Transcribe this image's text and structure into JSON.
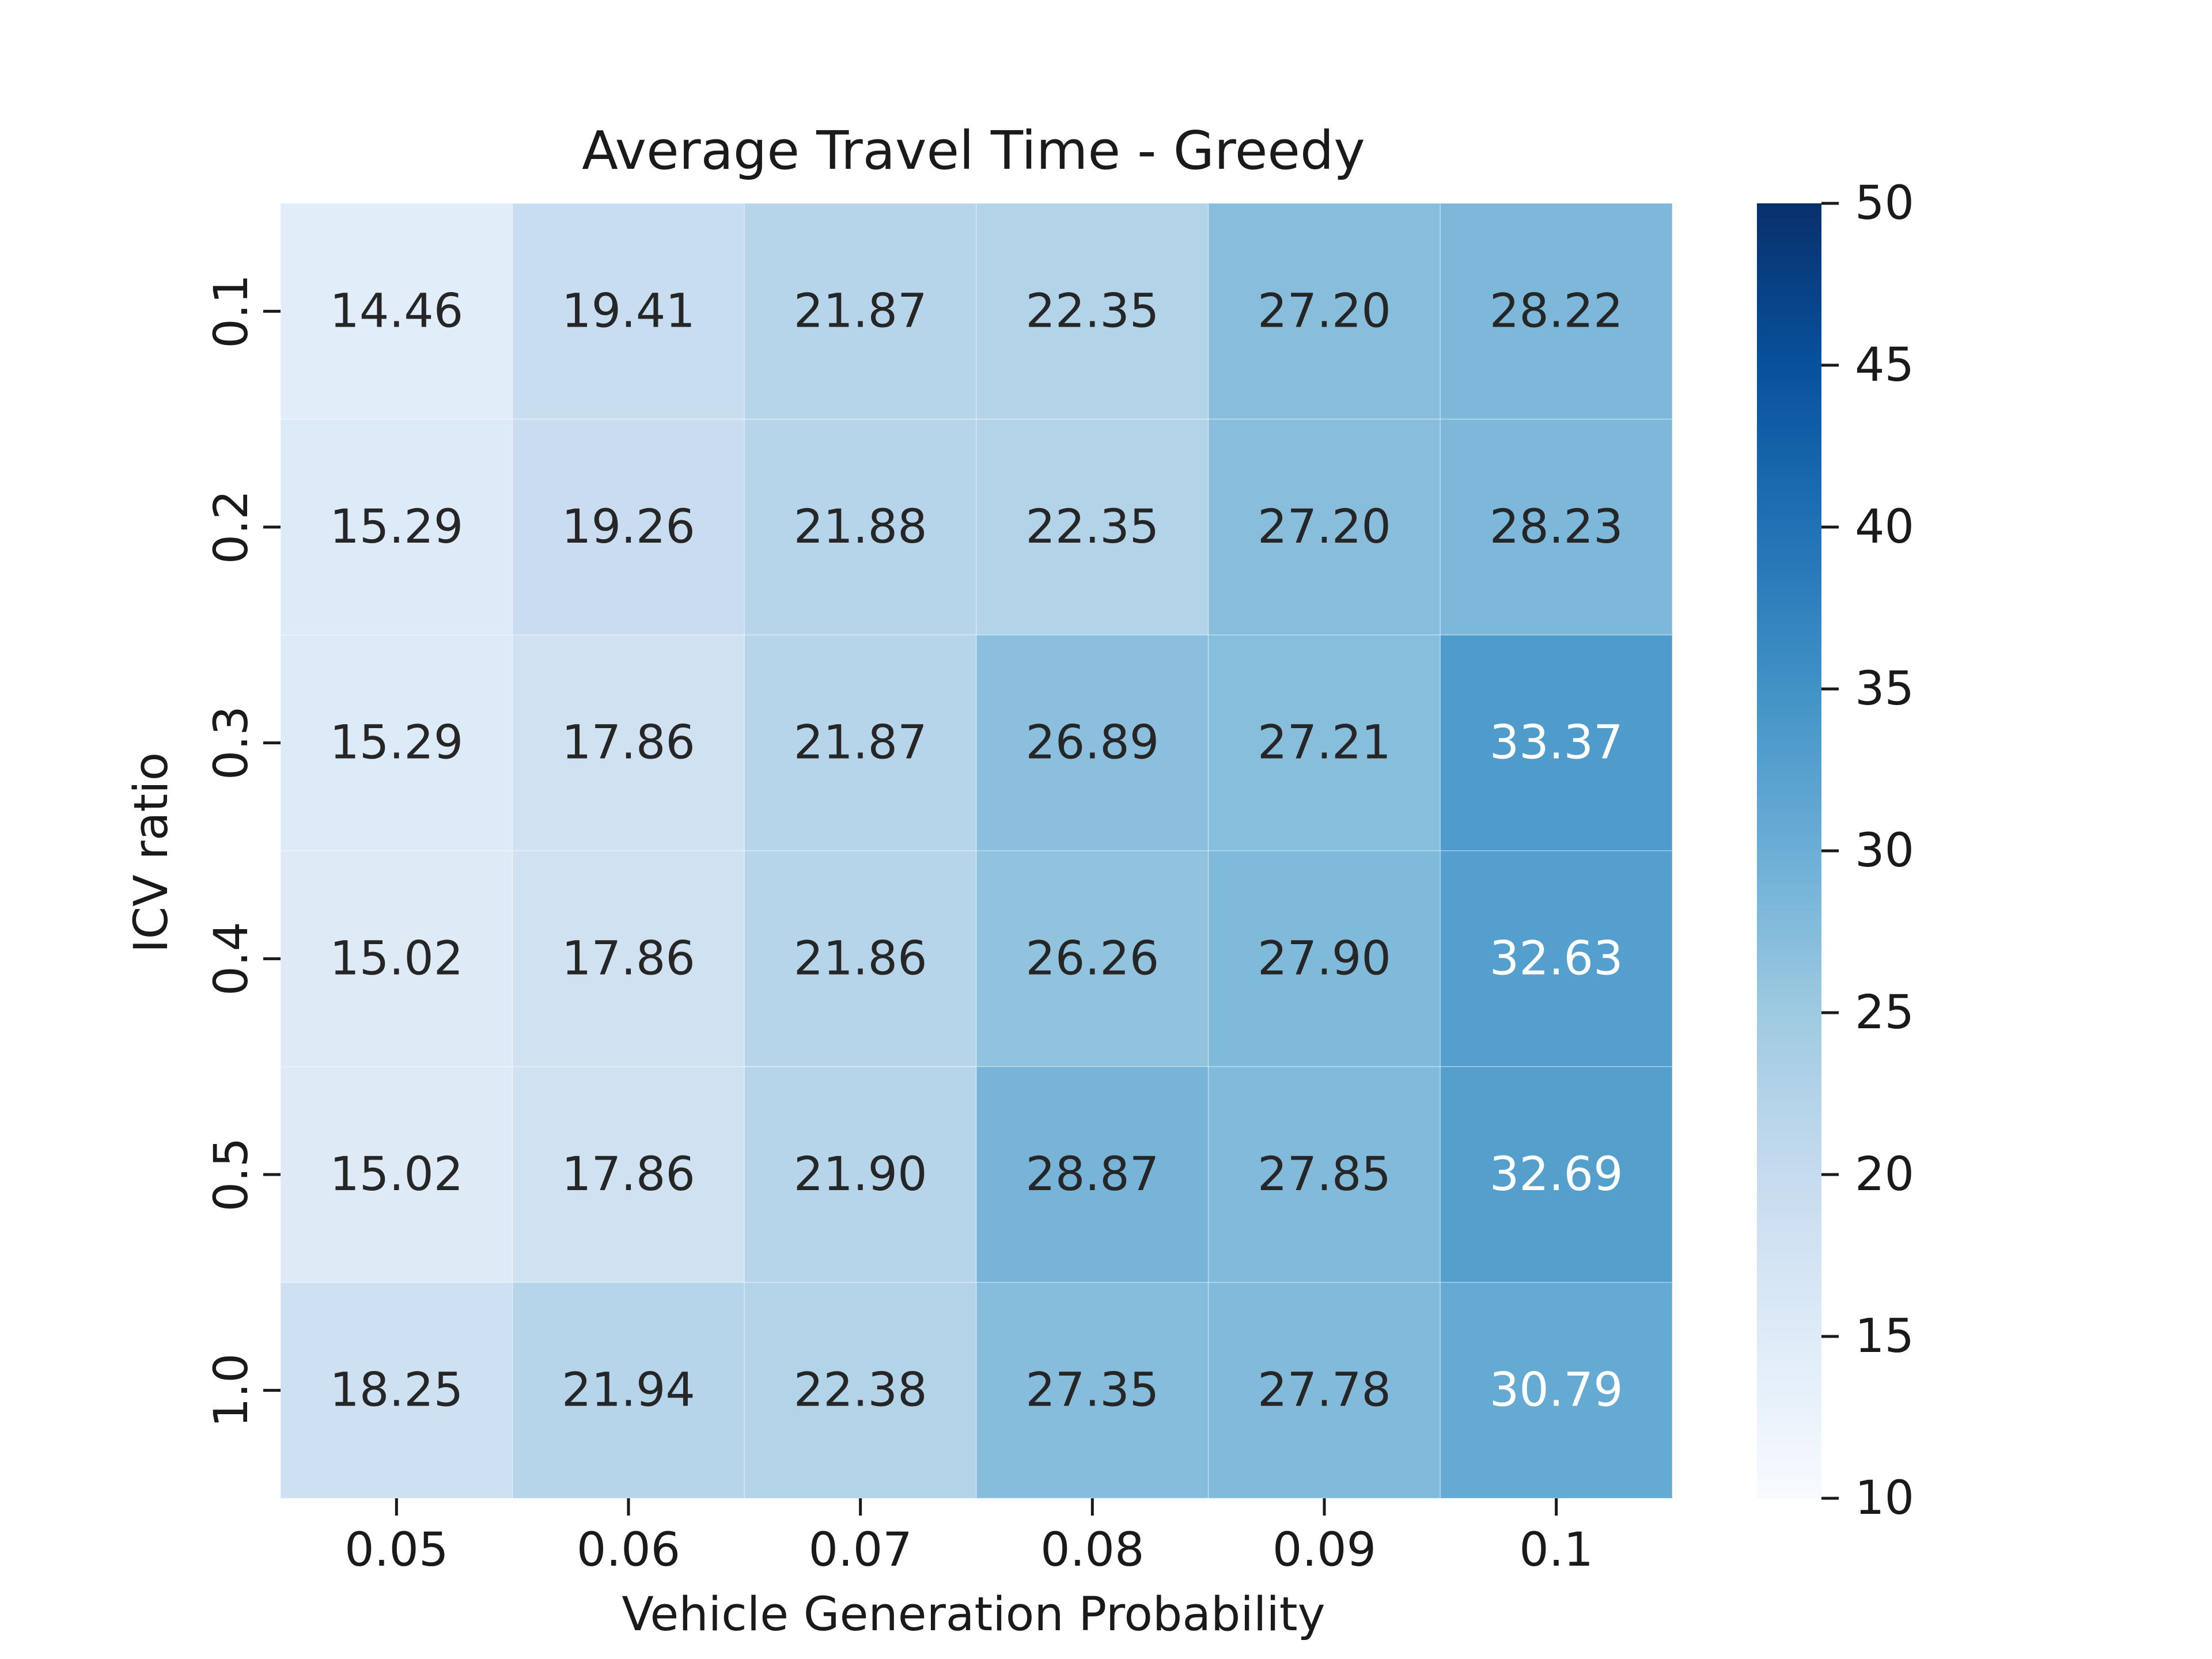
{
  "chart_data": {
    "type": "heatmap",
    "title": "Average Travel Time - Greedy",
    "xlabel": "Vehicle Generation Probability",
    "ylabel": "ICV ratio",
    "x_categories": [
      "0.05",
      "0.06",
      "0.07",
      "0.08",
      "0.09",
      "0.1"
    ],
    "y_categories": [
      "0.1",
      "0.2",
      "0.3",
      "0.4",
      "0.5",
      "1.0"
    ],
    "values": [
      [
        14.46,
        19.41,
        21.87,
        22.35,
        27.2,
        28.22
      ],
      [
        15.29,
        19.26,
        21.88,
        22.35,
        27.2,
        28.23
      ],
      [
        15.29,
        17.86,
        21.87,
        26.89,
        27.21,
        33.37
      ],
      [
        15.02,
        17.86,
        21.86,
        26.26,
        27.9,
        32.63
      ],
      [
        15.02,
        17.86,
        21.9,
        28.87,
        27.85,
        32.69
      ],
      [
        18.25,
        21.94,
        22.38,
        27.35,
        27.78,
        30.79
      ]
    ],
    "annotation_format": "0.00",
    "colormap": "Blues",
    "vmin": 10,
    "vmax": 50,
    "colorbar_ticks": [
      10,
      15,
      20,
      25,
      30,
      35,
      40,
      45,
      50
    ],
    "grid": false,
    "colorbar_position": "right"
  }
}
